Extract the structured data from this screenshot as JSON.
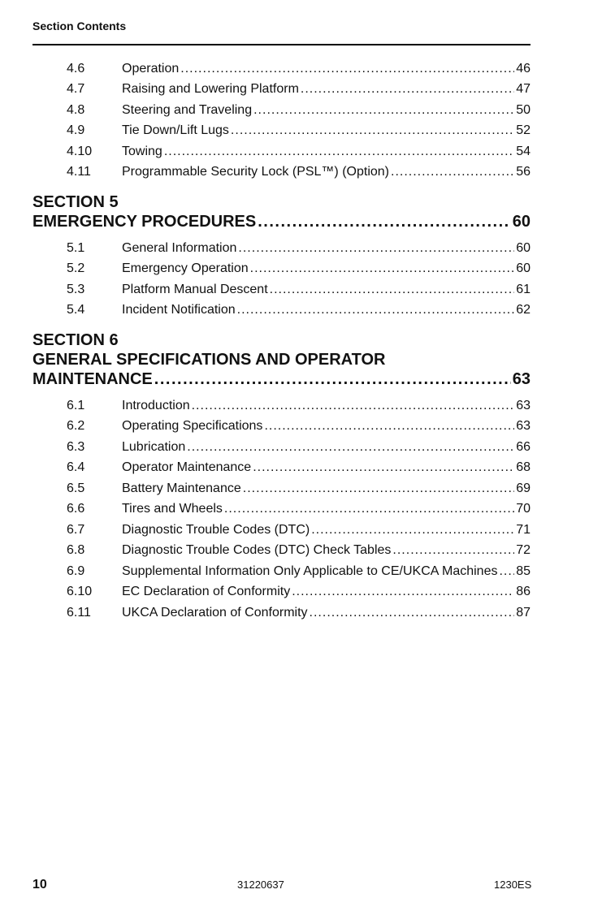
{
  "header": {
    "title": "Section Contents"
  },
  "toc": [
    {
      "type": "entry",
      "num": "4.6",
      "title": "Operation",
      "page": "46"
    },
    {
      "type": "entry",
      "num": "4.7",
      "title": "Raising and Lowering Platform",
      "page": "47"
    },
    {
      "type": "entry",
      "num": "4.8",
      "title": "Steering and Traveling",
      "page": "50"
    },
    {
      "type": "entry",
      "num": "4.9",
      "title": "Tie Down/Lift Lugs",
      "page": "52"
    },
    {
      "type": "entry",
      "num": "4.10",
      "title": "Towing",
      "page": "54"
    },
    {
      "type": "entry",
      "num": "4.11",
      "title": "Programmable Security Lock (PSL™) (Option)",
      "page": "56"
    },
    {
      "type": "section",
      "lines": [
        "SECTION 5"
      ],
      "last": "EMERGENCY PROCEDURES",
      "page": "60"
    },
    {
      "type": "entry",
      "num": "5.1",
      "title": "General Information",
      "page": "60"
    },
    {
      "type": "entry",
      "num": "5.2",
      "title": "Emergency Operation",
      "page": "60"
    },
    {
      "type": "entry",
      "num": "5.3",
      "title": "Platform Manual Descent",
      "page": "61"
    },
    {
      "type": "entry",
      "num": "5.4",
      "title": "Incident Notification",
      "page": "62"
    },
    {
      "type": "section",
      "lines": [
        "SECTION 6",
        "GENERAL SPECIFICATIONS AND OPERATOR"
      ],
      "last": "MAINTENANCE",
      "page": "63"
    },
    {
      "type": "entry",
      "num": "6.1",
      "title": "Introduction",
      "page": "63"
    },
    {
      "type": "entry",
      "num": "6.2",
      "title": "Operating Specifications",
      "page": "63"
    },
    {
      "type": "entry",
      "num": "6.3",
      "title": "Lubrication",
      "page": "66"
    },
    {
      "type": "entry",
      "num": "6.4",
      "title": "Operator Maintenance",
      "page": "68"
    },
    {
      "type": "entry",
      "num": "6.5",
      "title": "Battery Maintenance",
      "page": "69"
    },
    {
      "type": "entry",
      "num": "6.6",
      "title": "Tires and Wheels",
      "page": "70"
    },
    {
      "type": "entry",
      "num": "6.7",
      "title": "Diagnostic Trouble Codes (DTC)",
      "page": "71"
    },
    {
      "type": "entry",
      "num": "6.8",
      "title": "Diagnostic Trouble Codes (DTC) Check Tables",
      "page": "72"
    },
    {
      "type": "entry",
      "num": "6.9",
      "title": "Supplemental Information Only Applicable to CE/UKCA Machines",
      "page": "85"
    },
    {
      "type": "entry",
      "num": "6.10",
      "title": "EC Declaration of Conformity",
      "page": "86"
    },
    {
      "type": "entry",
      "num": "6.11",
      "title": "UKCA Declaration of Conformity",
      "page": "87"
    }
  ],
  "footer": {
    "page_number": "10",
    "doc_number": "31220637",
    "model": "1230ES"
  }
}
